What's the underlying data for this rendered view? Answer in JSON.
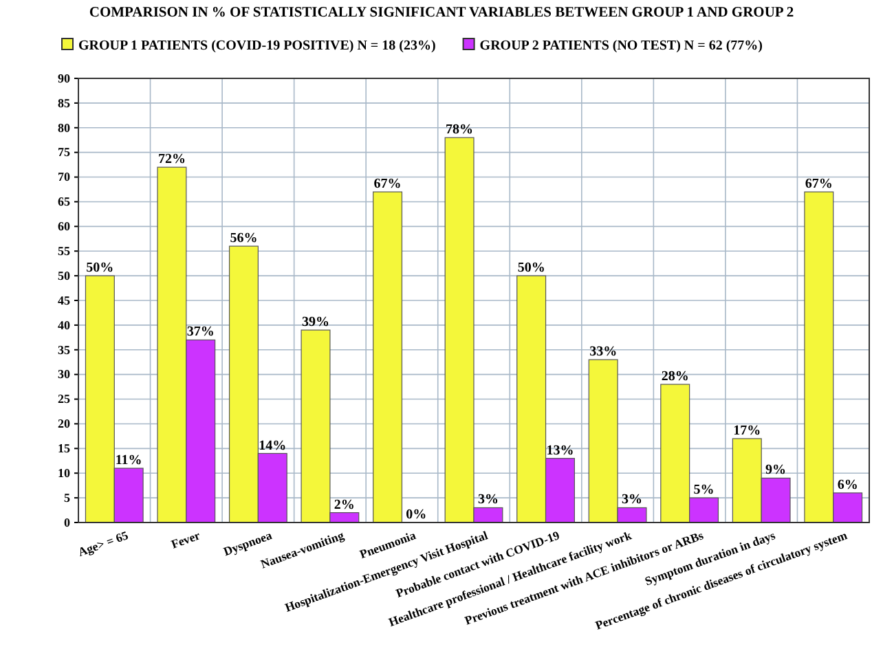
{
  "chart_data": {
    "type": "bar",
    "title": "COMPARISON IN % OF STATISTICALLY SIGNIFICANT VARIABLES BETWEEN GROUP 1 AND GROUP 2",
    "categories": [
      "Age> = 65",
      "Fever",
      "Dyspnoea",
      "Nausea-vomiting",
      "Pneumonia",
      "Hospitalization-Emergency Visit Hospital",
      "Probable contact with COVID-19",
      "Healthcare professional / Healthcare facility work",
      "Previous treatment with ACE inhibitors or ARBs",
      "Symptom duration in days",
      "Percentage of chronic diseases of circulatory system"
    ],
    "series": [
      {
        "name": "GROUP 1 PATIENTS (COVID-19 POSITIVE) N = 18 (23%)",
        "color": "#f4f73a",
        "values": [
          50,
          72,
          56,
          39,
          67,
          78,
          50,
          33,
          28,
          17,
          67
        ],
        "value_labels": [
          "50%",
          "72%",
          "56%",
          "39%",
          "67%",
          "78%",
          "50%",
          "33%",
          "28%",
          "17%",
          "67%"
        ]
      },
      {
        "name": "GROUP 2 PATIENTS (NO TEST) N = 62 (77%)",
        "color": "#cc33ff",
        "values": [
          11,
          37,
          14,
          2,
          0,
          3,
          13,
          3,
          5,
          9,
          6
        ],
        "value_labels": [
          "11%",
          "37%",
          "14%",
          "2%",
          "0%",
          "3%",
          "13%",
          "3%",
          "5%",
          "9%",
          "6%"
        ]
      }
    ],
    "ylim": [
      0,
      90
    ],
    "yticks": [
      0,
      5,
      10,
      15,
      20,
      25,
      30,
      35,
      40,
      45,
      50,
      55,
      60,
      65,
      70,
      75,
      80,
      85,
      90
    ],
    "grid": true,
    "legend": "top"
  }
}
